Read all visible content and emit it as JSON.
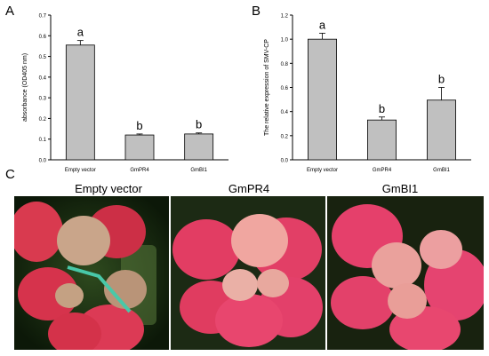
{
  "panels": {
    "a": "A",
    "b": "B",
    "c": "C"
  },
  "chart_data": [
    {
      "type": "bar",
      "categories": [
        "Empty vector",
        "GmPR4",
        "GmBI1"
      ],
      "values": [
        0.555,
        0.12,
        0.125
      ],
      "errors": [
        0.022,
        0.005,
        0.005
      ],
      "significance": [
        "a",
        "b",
        "b"
      ],
      "ylabel": "absorbance (OD405 nm)",
      "ylim": [
        0,
        0.7
      ],
      "yticks": [
        0.0,
        0.1,
        0.2,
        0.3,
        0.4,
        0.5,
        0.6,
        0.7
      ],
      "ytick_labels": [
        "0.0",
        "0.1",
        "0.2",
        "0.3",
        "0.4",
        "0.5",
        "0.6",
        "0.7"
      ],
      "bar_color": "#c0c0c0",
      "grid": false
    },
    {
      "type": "bar",
      "categories": [
        "Empty vector",
        "GmPR4",
        "GmBI1"
      ],
      "values": [
        1.0,
        0.33,
        0.495
      ],
      "errors": [
        0.05,
        0.025,
        0.105
      ],
      "significance": [
        "a",
        "b",
        "b"
      ],
      "ylabel": "The relative expression of SMV-CP",
      "ylim": [
        0,
        1.2
      ],
      "yticks": [
        0.0,
        0.2,
        0.4,
        0.6,
        0.8,
        1.0,
        1.2
      ],
      "ytick_labels": [
        "0.0",
        "0.2",
        "0.4",
        "0.6",
        "0.8",
        "1.0",
        "1.2"
      ],
      "bar_color": "#c0c0c0",
      "grid": false
    }
  ],
  "photos": [
    {
      "title": "Empty vector"
    },
    {
      "title": "GmPR4"
    },
    {
      "title": "GmBI1"
    }
  ]
}
